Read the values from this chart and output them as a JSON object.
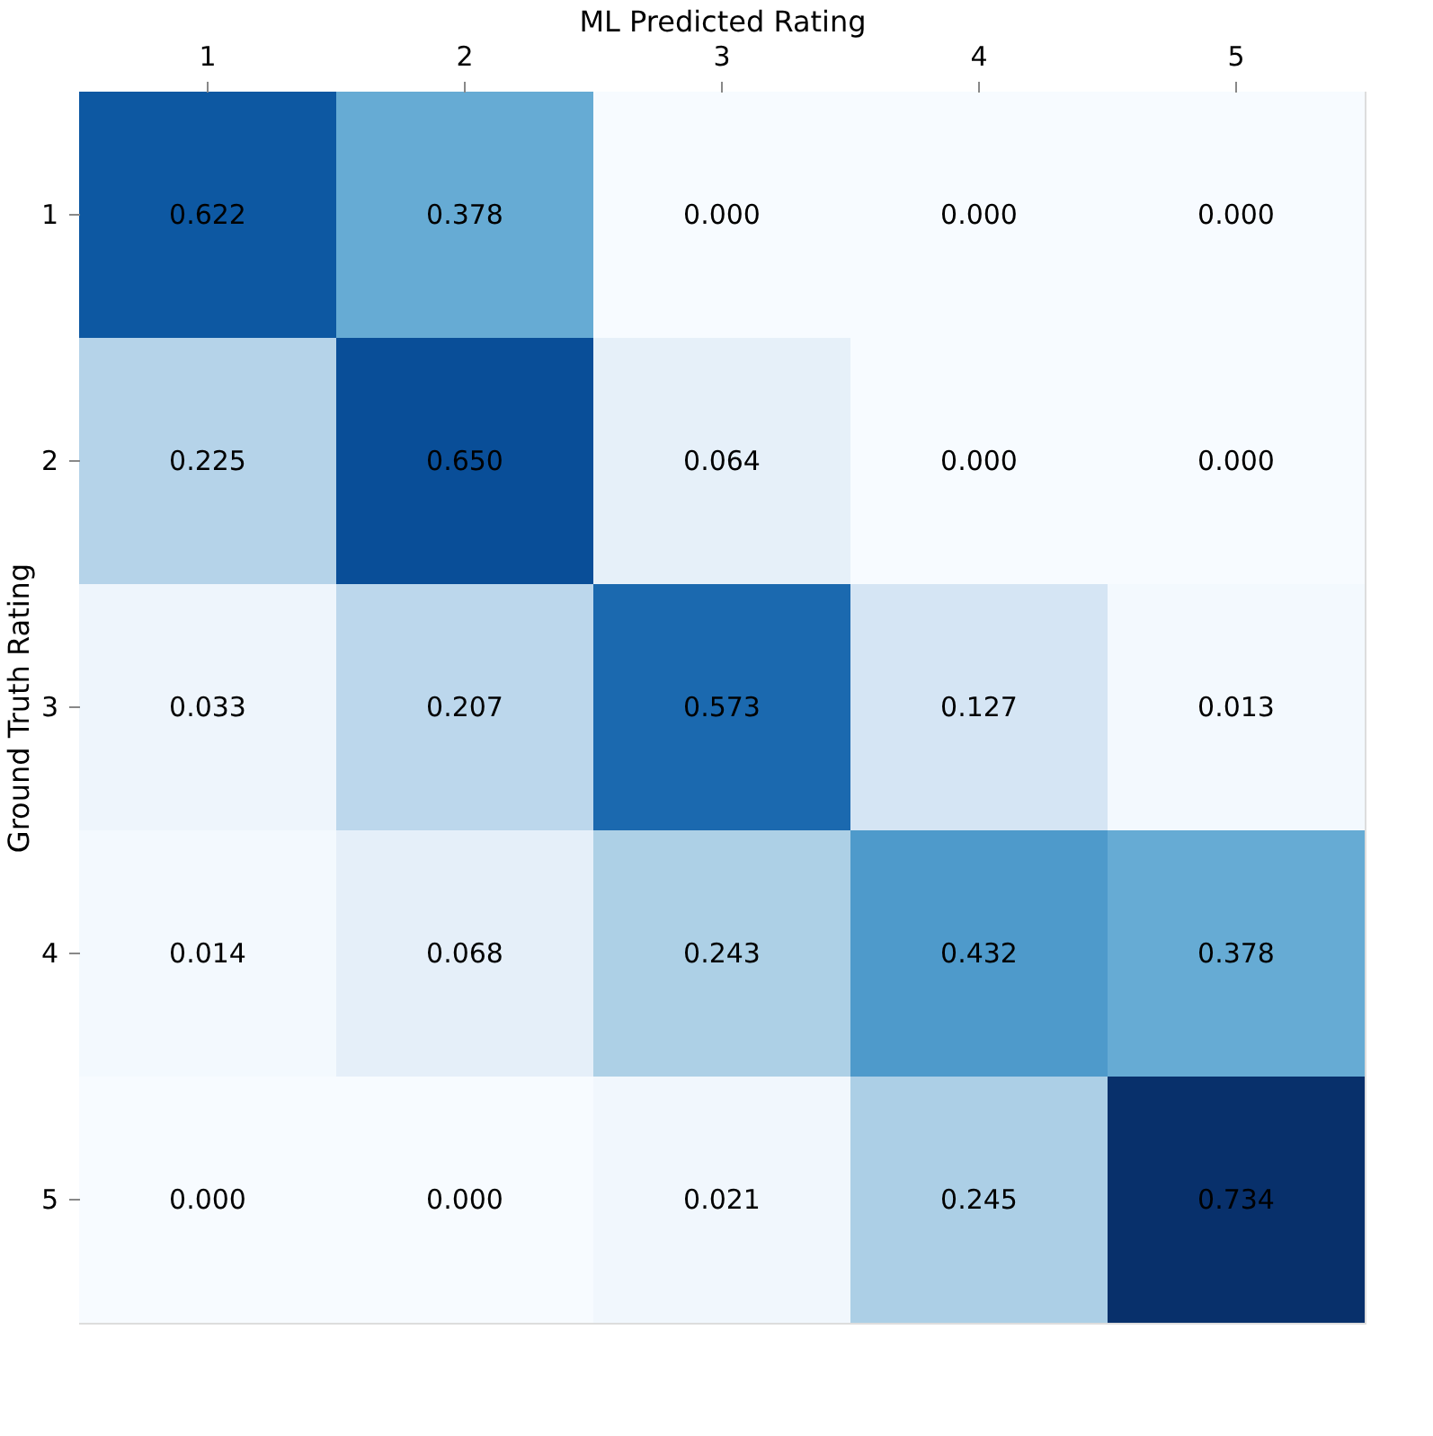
{
  "chart_data": {
    "type": "heatmap",
    "xlabel": "ML Predicted Rating",
    "ylabel": "Ground Truth Rating",
    "categories": [
      "1",
      "2",
      "3",
      "4",
      "5"
    ],
    "y_categories": [
      "1",
      "2",
      "3",
      "4",
      "5"
    ],
    "cells": [
      [
        0.622,
        0.378,
        0.0,
        0.0,
        0.0
      ],
      [
        0.225,
        0.65,
        0.064,
        0.0,
        0.0
      ],
      [
        0.033,
        0.207,
        0.573,
        0.127,
        0.013
      ],
      [
        0.014,
        0.068,
        0.243,
        0.432,
        0.378
      ],
      [
        0.0,
        0.0,
        0.021,
        0.245,
        0.734
      ]
    ],
    "cell_labels": [
      [
        "0.622",
        "0.378",
        "0.000",
        "0.000",
        "0.000"
      ],
      [
        "0.225",
        "0.650",
        "0.064",
        "0.000",
        "0.000"
      ],
      [
        "0.033",
        "0.207",
        "0.573",
        "0.127",
        "0.013"
      ],
      [
        "0.014",
        "0.068",
        "0.243",
        "0.432",
        "0.378"
      ],
      [
        "0.000",
        "0.000",
        "0.021",
        "0.245",
        "0.734"
      ]
    ]
  }
}
